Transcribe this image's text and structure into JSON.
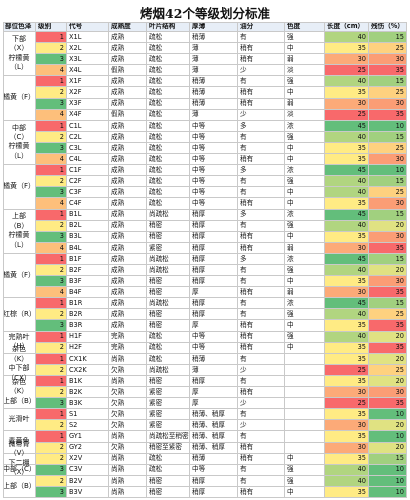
{
  "title": "烤烟42个等级划分标准",
  "headers": [
    "部位色泽",
    "级别",
    "代号",
    "成熟度",
    "叶片结构",
    "厚薄",
    "油分",
    "色度",
    "长度（cm）",
    "残伤（%）"
  ],
  "colors": {
    "green": "#63be7b",
    "yellow": "#ffeb84",
    "orange": "#fdbf7b",
    "red": "#f8696b"
  },
  "groups": [
    {
      "label": "下部（X）\n柠檬黄\n（L）",
      "start": 0,
      "span": 4
    },
    {
      "label": "橘黄（F）",
      "start": 4,
      "span": 4
    },
    {
      "label": "中部（C）\n柠檬黄\n（L）",
      "start": 8,
      "span": 4
    },
    {
      "label": "橘黄（F）",
      "start": 12,
      "span": 4
    },
    {
      "label": "上部\n（B）\n柠檬黄\n（L）",
      "start": 16,
      "span": 4
    },
    {
      "label": "橘黄（F）",
      "start": 20,
      "span": 4
    },
    {
      "label": "红棕（R）",
      "start": 24,
      "span": 3
    },
    {
      "label": "完熟叶\n（H）",
      "start": 27,
      "span": 2
    },
    {
      "label": "杂色（K）\n中下部\n（CX）",
      "start": 29,
      "span": 2
    },
    {
      "label": "杂色（K）\n上部（B）",
      "start": 31,
      "span": 3
    },
    {
      "label": "光滑叶",
      "start": 34,
      "span": 2
    },
    {
      "label": "青黄色",
      "start": 36,
      "span": 2
    },
    {
      "label": "微带青\n（V）\n下二棚\n（X）",
      "start": 38,
      "span": 1
    },
    {
      "label": "中部（C）",
      "start": 39,
      "span": 1
    },
    {
      "label": "上部（B）",
      "start": 40,
      "span": 2
    }
  ],
  "rows": [
    {
      "level": "1",
      "code": "X1L",
      "maturity": "成熟",
      "structure": "疏松",
      "thickness": "稍薄",
      "oil": "有",
      "color": "强",
      "length": "40",
      "damage": "15"
    },
    {
      "level": "2",
      "code": "X2L",
      "maturity": "成熟",
      "structure": "疏松",
      "thickness": "薄",
      "oil": "稍有",
      "color": "中",
      "length": "35",
      "damage": "25"
    },
    {
      "level": "3",
      "code": "X3L",
      "maturity": "成熟",
      "structure": "疏松",
      "thickness": "薄",
      "oil": "稍有",
      "color": "弱",
      "length": "30",
      "damage": "30"
    },
    {
      "level": "4",
      "code": "X4L",
      "maturity": "假熟",
      "structure": "疏松",
      "thickness": "薄",
      "oil": "少",
      "color": "淡",
      "length": "25",
      "damage": "35"
    },
    {
      "level": "1",
      "code": "X1F",
      "maturity": "成熟",
      "structure": "疏松",
      "thickness": "稍薄",
      "oil": "有",
      "color": "强",
      "length": "40",
      "damage": "15"
    },
    {
      "level": "2",
      "code": "X2F",
      "maturity": "成熟",
      "structure": "疏松",
      "thickness": "稍薄",
      "oil": "稍有",
      "color": "中",
      "length": "35",
      "damage": "25"
    },
    {
      "level": "3",
      "code": "X3F",
      "maturity": "成熟",
      "structure": "疏松",
      "thickness": "稍薄",
      "oil": "稍有",
      "color": "弱",
      "length": "30",
      "damage": "30"
    },
    {
      "level": "4",
      "code": "X4F",
      "maturity": "假熟",
      "structure": "疏松",
      "thickness": "薄",
      "oil": "少",
      "color": "淡",
      "length": "25",
      "damage": "35"
    },
    {
      "level": "1",
      "code": "C1L",
      "maturity": "成熟",
      "structure": "疏松",
      "thickness": "中等",
      "oil": "多",
      "color": "浓",
      "length": "45",
      "damage": "10"
    },
    {
      "level": "2",
      "code": "C2L",
      "maturity": "成熟",
      "structure": "疏松",
      "thickness": "中等",
      "oil": "有",
      "color": "强",
      "length": "40",
      "damage": "15"
    },
    {
      "level": "3",
      "code": "C3L",
      "maturity": "成熟",
      "structure": "疏松",
      "thickness": "中等",
      "oil": "有",
      "color": "中",
      "length": "35",
      "damage": "25"
    },
    {
      "level": "4",
      "code": "C4L",
      "maturity": "成熟",
      "structure": "疏松",
      "thickness": "中等",
      "oil": "稍有",
      "color": "中",
      "length": "35",
      "damage": "30"
    },
    {
      "level": "1",
      "code": "C1F",
      "maturity": "成熟",
      "structure": "疏松",
      "thickness": "中等",
      "oil": "多",
      "color": "浓",
      "length": "45",
      "damage": "10"
    },
    {
      "level": "2",
      "code": "C2F",
      "maturity": "成熟",
      "structure": "疏松",
      "thickness": "中等",
      "oil": "有",
      "color": "强",
      "length": "40",
      "damage": "15"
    },
    {
      "level": "3",
      "code": "C3F",
      "maturity": "成熟",
      "structure": "疏松",
      "thickness": "中等",
      "oil": "有",
      "color": "中",
      "length": "40",
      "damage": "25"
    },
    {
      "level": "4",
      "code": "C4F",
      "maturity": "成熟",
      "structure": "疏松",
      "thickness": "中等",
      "oil": "稍有",
      "color": "中",
      "length": "35",
      "damage": "30"
    },
    {
      "level": "1",
      "code": "B1L",
      "maturity": "成熟",
      "structure": "尚疏松",
      "thickness": "稍厚",
      "oil": "多",
      "color": "浓",
      "length": "45",
      "damage": "15"
    },
    {
      "level": "2",
      "code": "B2L",
      "maturity": "成熟",
      "structure": "稍密",
      "thickness": "稍厚",
      "oil": "有",
      "color": "强",
      "length": "40",
      "damage": "20"
    },
    {
      "level": "3",
      "code": "B3L",
      "maturity": "成熟",
      "structure": "稍密",
      "thickness": "稍厚",
      "oil": "稍有",
      "color": "中",
      "length": "35",
      "damage": "30"
    },
    {
      "level": "4",
      "code": "B4L",
      "maturity": "成熟",
      "structure": "紧密",
      "thickness": "稍厚",
      "oil": "稍有",
      "color": "弱",
      "length": "30",
      "damage": "35"
    },
    {
      "level": "1",
      "code": "B1F",
      "maturity": "成熟",
      "structure": "尚疏松",
      "thickness": "稍厚",
      "oil": "多",
      "color": "浓",
      "length": "45",
      "damage": "15"
    },
    {
      "level": "2",
      "code": "B2F",
      "maturity": "成熟",
      "structure": "尚疏松",
      "thickness": "稍厚",
      "oil": "有",
      "color": "强",
      "length": "40",
      "damage": "20"
    },
    {
      "level": "3",
      "code": "B3F",
      "maturity": "成熟",
      "structure": "稍密",
      "thickness": "稍厚",
      "oil": "有",
      "color": "中",
      "length": "35",
      "damage": "30"
    },
    {
      "level": "4",
      "code": "B4F",
      "maturity": "成熟",
      "structure": "稍密",
      "thickness": "厚",
      "oil": "稍有",
      "color": "弱",
      "length": "30",
      "damage": "35"
    },
    {
      "level": "1",
      "code": "B1R",
      "maturity": "成熟",
      "structure": "尚疏松",
      "thickness": "稍厚",
      "oil": "有",
      "color": "浓",
      "length": "45",
      "damage": "15"
    },
    {
      "level": "2",
      "code": "B2R",
      "maturity": "成熟",
      "structure": "稍密",
      "thickness": "稍厚",
      "oil": "有",
      "color": "强",
      "length": "40",
      "damage": "25"
    },
    {
      "level": "3",
      "code": "B3R",
      "maturity": "成熟",
      "structure": "稍密",
      "thickness": "厚",
      "oil": "稍有",
      "color": "中",
      "length": "35",
      "damage": "35"
    },
    {
      "level": "1",
      "code": "H1F",
      "maturity": "完熟",
      "structure": "疏松",
      "thickness": "中等",
      "oil": "稍有",
      "color": "强",
      "length": "40",
      "damage": "20"
    },
    {
      "level": "2",
      "code": "H2F",
      "maturity": "完熟",
      "structure": "疏松",
      "thickness": "中等",
      "oil": "稍有",
      "color": "中",
      "length": "35",
      "damage": "35"
    },
    {
      "level": "1",
      "code": "CX1K",
      "maturity": "尚熟",
      "structure": "疏松",
      "thickness": "稍薄",
      "oil": "有",
      "color": "",
      "length": "35",
      "damage": "20"
    },
    {
      "level": "2",
      "code": "CX2K",
      "maturity": "欠熟",
      "structure": "尚疏松",
      "thickness": "薄",
      "oil": "少",
      "color": "",
      "length": "25",
      "damage": "25"
    },
    {
      "level": "1",
      "code": "B1K",
      "maturity": "尚熟",
      "structure": "稍密",
      "thickness": "稍厚",
      "oil": "有",
      "color": "",
      "length": "35",
      "damage": "20"
    },
    {
      "level": "2",
      "code": "B2K",
      "maturity": "欠熟",
      "structure": "紧密",
      "thickness": "厚",
      "oil": "稍有",
      "color": "",
      "length": "30",
      "damage": "30"
    },
    {
      "level": "3",
      "code": "B3K",
      "maturity": "欠熟",
      "structure": "紧密",
      "thickness": "厚",
      "oil": "少",
      "color": "",
      "length": "25",
      "damage": "35"
    },
    {
      "level": "1",
      "code": "S1",
      "maturity": "欠熟",
      "structure": "紧密",
      "thickness": "稍薄、稍厚",
      "oil": "有",
      "color": "",
      "length": "35",
      "damage": "10"
    },
    {
      "level": "2",
      "code": "S2",
      "maturity": "欠熟",
      "structure": "紧密",
      "thickness": "稍薄、稍厚",
      "oil": "少",
      "color": "",
      "length": "30",
      "damage": "20"
    },
    {
      "level": "1",
      "code": "GY1",
      "maturity": "尚熟",
      "structure": "尚疏松至稍密",
      "thickness": "稍薄、稍厚",
      "oil": "有",
      "color": "",
      "length": "35",
      "damage": "10"
    },
    {
      "level": "2",
      "code": "GY2",
      "maturity": "欠熟",
      "structure": "稍密至紧密",
      "thickness": "稍薄、稍厚",
      "oil": "稍有",
      "color": "",
      "length": "30",
      "damage": "20"
    },
    {
      "level": "2",
      "code": "X2V",
      "maturity": "尚熟",
      "structure": "疏松",
      "thickness": "稍薄",
      "oil": "稍有",
      "color": "中",
      "length": "35",
      "damage": "15"
    },
    {
      "level": "3",
      "code": "C3V",
      "maturity": "尚熟",
      "structure": "疏松",
      "thickness": "中等",
      "oil": "有",
      "color": "强",
      "length": "40",
      "damage": "10"
    },
    {
      "level": "2",
      "code": "B2V",
      "maturity": "尚熟",
      "structure": "稍密",
      "thickness": "稍厚",
      "oil": "有",
      "color": "强",
      "length": "40",
      "damage": "10"
    },
    {
      "level": "3",
      "code": "B3V",
      "maturity": "尚熟",
      "structure": "稍密",
      "thickness": "稍厚",
      "oil": "稍有",
      "color": "中",
      "length": "35",
      "damage": "10"
    }
  ]
}
